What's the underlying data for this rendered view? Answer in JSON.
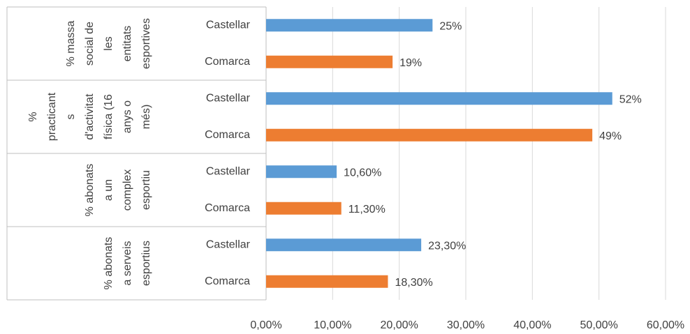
{
  "chart_data": {
    "type": "bar",
    "orientation": "horizontal",
    "groups": [
      {
        "lines": [
          "% massa",
          "social de",
          "les",
          "entitats",
          "esportives"
        ]
      },
      {
        "lines": [
          "%",
          "practicant",
          "s",
          "d'activitat",
          "física (16",
          "anys o",
          "més)"
        ]
      },
      {
        "lines": [
          "% abonats",
          "a un",
          "complex",
          "esportiu"
        ]
      },
      {
        "lines": [
          "% abonats",
          "a serveis",
          "esportius"
        ]
      }
    ],
    "categories": [
      "Castellar",
      "Comarca",
      "Castellar",
      "Comarca",
      "Castellar",
      "Comarca",
      "Castellar",
      "Comarca"
    ],
    "values": [
      25,
      19,
      52,
      49,
      10.6,
      11.3,
      23.3,
      18.3
    ],
    "value_labels": [
      "25%",
      "19%",
      "52%",
      "49%",
      "10,60%",
      "11,30%",
      "23,30%",
      "18,30%"
    ],
    "colors": [
      "#5b9bd5",
      "#ed7d31",
      "#5b9bd5",
      "#ed7d31",
      "#5b9bd5",
      "#ed7d31",
      "#5b9bd5",
      "#ed7d31"
    ],
    "xlim": [
      0,
      60
    ],
    "xticks": [
      {
        "value": 0,
        "label": "0,00%"
      },
      {
        "value": 10,
        "label": "10,00%"
      },
      {
        "value": 20,
        "label": "20,00%"
      },
      {
        "value": 30,
        "label": "30,00%"
      },
      {
        "value": 40,
        "label": "40,00%"
      },
      {
        "value": 50,
        "label": "50,00%"
      },
      {
        "value": 60,
        "label": "60,00%"
      }
    ],
    "grid": true
  }
}
